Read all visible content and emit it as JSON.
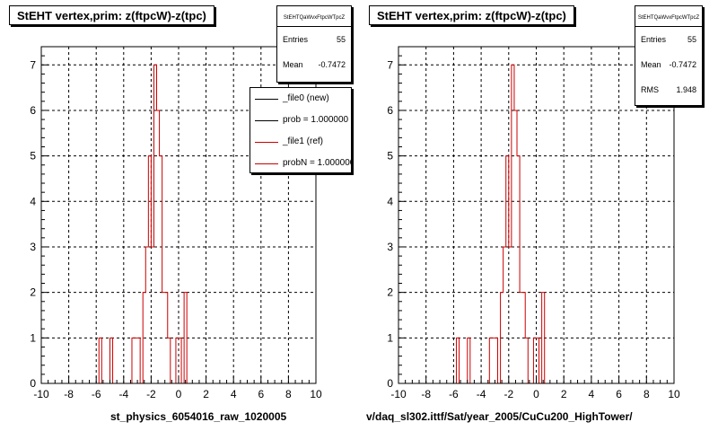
{
  "canvas": {
    "background": "#ffffff",
    "frame": "#000000",
    "hist_color": "#cc0000",
    "ref_color": "#000000"
  },
  "pads": [
    {
      "title": "StEHT  vertex,prim: z(ftpcW)-z(tpc)",
      "stats": {
        "header": "StEHTQaWvxFtpcWTpcZ",
        "entries_label": "Entries",
        "entries": "55",
        "mean_label": "Mean",
        "mean": "-0.7472"
      },
      "legend": [
        {
          "label": "_file0 (new)",
          "color": "#000000"
        },
        {
          "label": "prob = 1.000000",
          "color": "#000000"
        },
        {
          "label": "_file1 (ref)",
          "color": "#cc0000"
        },
        {
          "label": "probN = 1.000000",
          "color": "#cc0000"
        }
      ],
      "xlabel": "st_physics_6054016_raw_1020005"
    },
    {
      "title": "StEHT  vertex,prim: z(ftpcW)-z(tpc)",
      "stats": {
        "header": "StEHTQaWvxFtpcWTpcZ",
        "entries_label": "Entries",
        "entries": "55",
        "mean_label": "Mean",
        "mean": "-0.7472",
        "rms_label": "RMS",
        "rms": "1.948"
      },
      "xlabel": "v/daq_sl302.ittf/Sat/year_2005/CuCu200_HighTower/"
    }
  ],
  "chart_data": [
    {
      "type": "histogram",
      "title": "StEHT  vertex,prim: z(ftpcW)-z(tpc)",
      "xlabel": "st_physics_6054016_raw_1020005",
      "xlim": [
        -10,
        10
      ],
      "ylim": [
        0,
        7.4
      ],
      "x_ticks": [
        -10,
        -8,
        -6,
        -4,
        -2,
        0,
        2,
        4,
        6,
        8,
        10
      ],
      "y_ticks": [
        0,
        1,
        2,
        3,
        4,
        5,
        6,
        7
      ],
      "grid": true,
      "bins": {
        "low": -10,
        "width": 0.2,
        "count": 100
      },
      "series": [
        {
          "name": "_file1 (ref)",
          "color": "#cc0000",
          "values": [
            0,
            0,
            0,
            0,
            0,
            0,
            0,
            0,
            0,
            0,
            0,
            0,
            0,
            0,
            0,
            0,
            0,
            0,
            0,
            0,
            0,
            1,
            0,
            0,
            0,
            1,
            0,
            0,
            0,
            0,
            0,
            0,
            0,
            1,
            1,
            1,
            0,
            2,
            3,
            5,
            3,
            7,
            6,
            5,
            2,
            2,
            1,
            0,
            0,
            1,
            1,
            0,
            2,
            0,
            0,
            0,
            0,
            0,
            0,
            0,
            0,
            0,
            0,
            0,
            0,
            0,
            0,
            0,
            0,
            0,
            0,
            0,
            0,
            0,
            0,
            0,
            0,
            0,
            0,
            0,
            0,
            0,
            0,
            0,
            0,
            0,
            0,
            0,
            0,
            0,
            0,
            0,
            0,
            0,
            0,
            0,
            0,
            0,
            0,
            0
          ],
          "legend_sync": true
        }
      ],
      "stats": {
        "Entries": 55,
        "Mean": -0.7472
      }
    },
    {
      "type": "histogram",
      "title": "StEHT  vertex,prim: z(ftpcW)-z(tpc)",
      "xlabel": "v/daq_sl302.ittf/Sat/year_2005/CuCu200_HighTower/",
      "xlim": [
        -10,
        10
      ],
      "ylim": [
        0,
        7.4
      ],
      "x_ticks": [
        -10,
        -8,
        -6,
        -4,
        -2,
        0,
        2,
        4,
        6,
        8,
        10
      ],
      "y_ticks": [
        0,
        1,
        2,
        3,
        4,
        5,
        6,
        7
      ],
      "grid": true,
      "bins": {
        "low": -10,
        "width": 0.2,
        "count": 100
      },
      "series": [
        {
          "name": "",
          "color": "#cc0000",
          "values": [
            0,
            0,
            0,
            0,
            0,
            0,
            0,
            0,
            0,
            0,
            0,
            0,
            0,
            0,
            0,
            0,
            0,
            0,
            0,
            0,
            0,
            1,
            0,
            0,
            0,
            1,
            0,
            0,
            0,
            0,
            0,
            0,
            0,
            1,
            1,
            1,
            0,
            2,
            3,
            5,
            3,
            7,
            6,
            5,
            2,
            2,
            1,
            0,
            0,
            1,
            1,
            0,
            2,
            0,
            0,
            0,
            0,
            0,
            0,
            0,
            0,
            0,
            0,
            0,
            0,
            0,
            0,
            0,
            0,
            0,
            0,
            0,
            0,
            0,
            0,
            0,
            0,
            0,
            0,
            0,
            0,
            0,
            0,
            0,
            0,
            0,
            0,
            0,
            0,
            0,
            0,
            0,
            0,
            0,
            0,
            0,
            0,
            0,
            0,
            0
          ]
        }
      ],
      "stats": {
        "Entries": 55,
        "Mean": -0.7472,
        "RMS": 1.948
      }
    }
  ]
}
